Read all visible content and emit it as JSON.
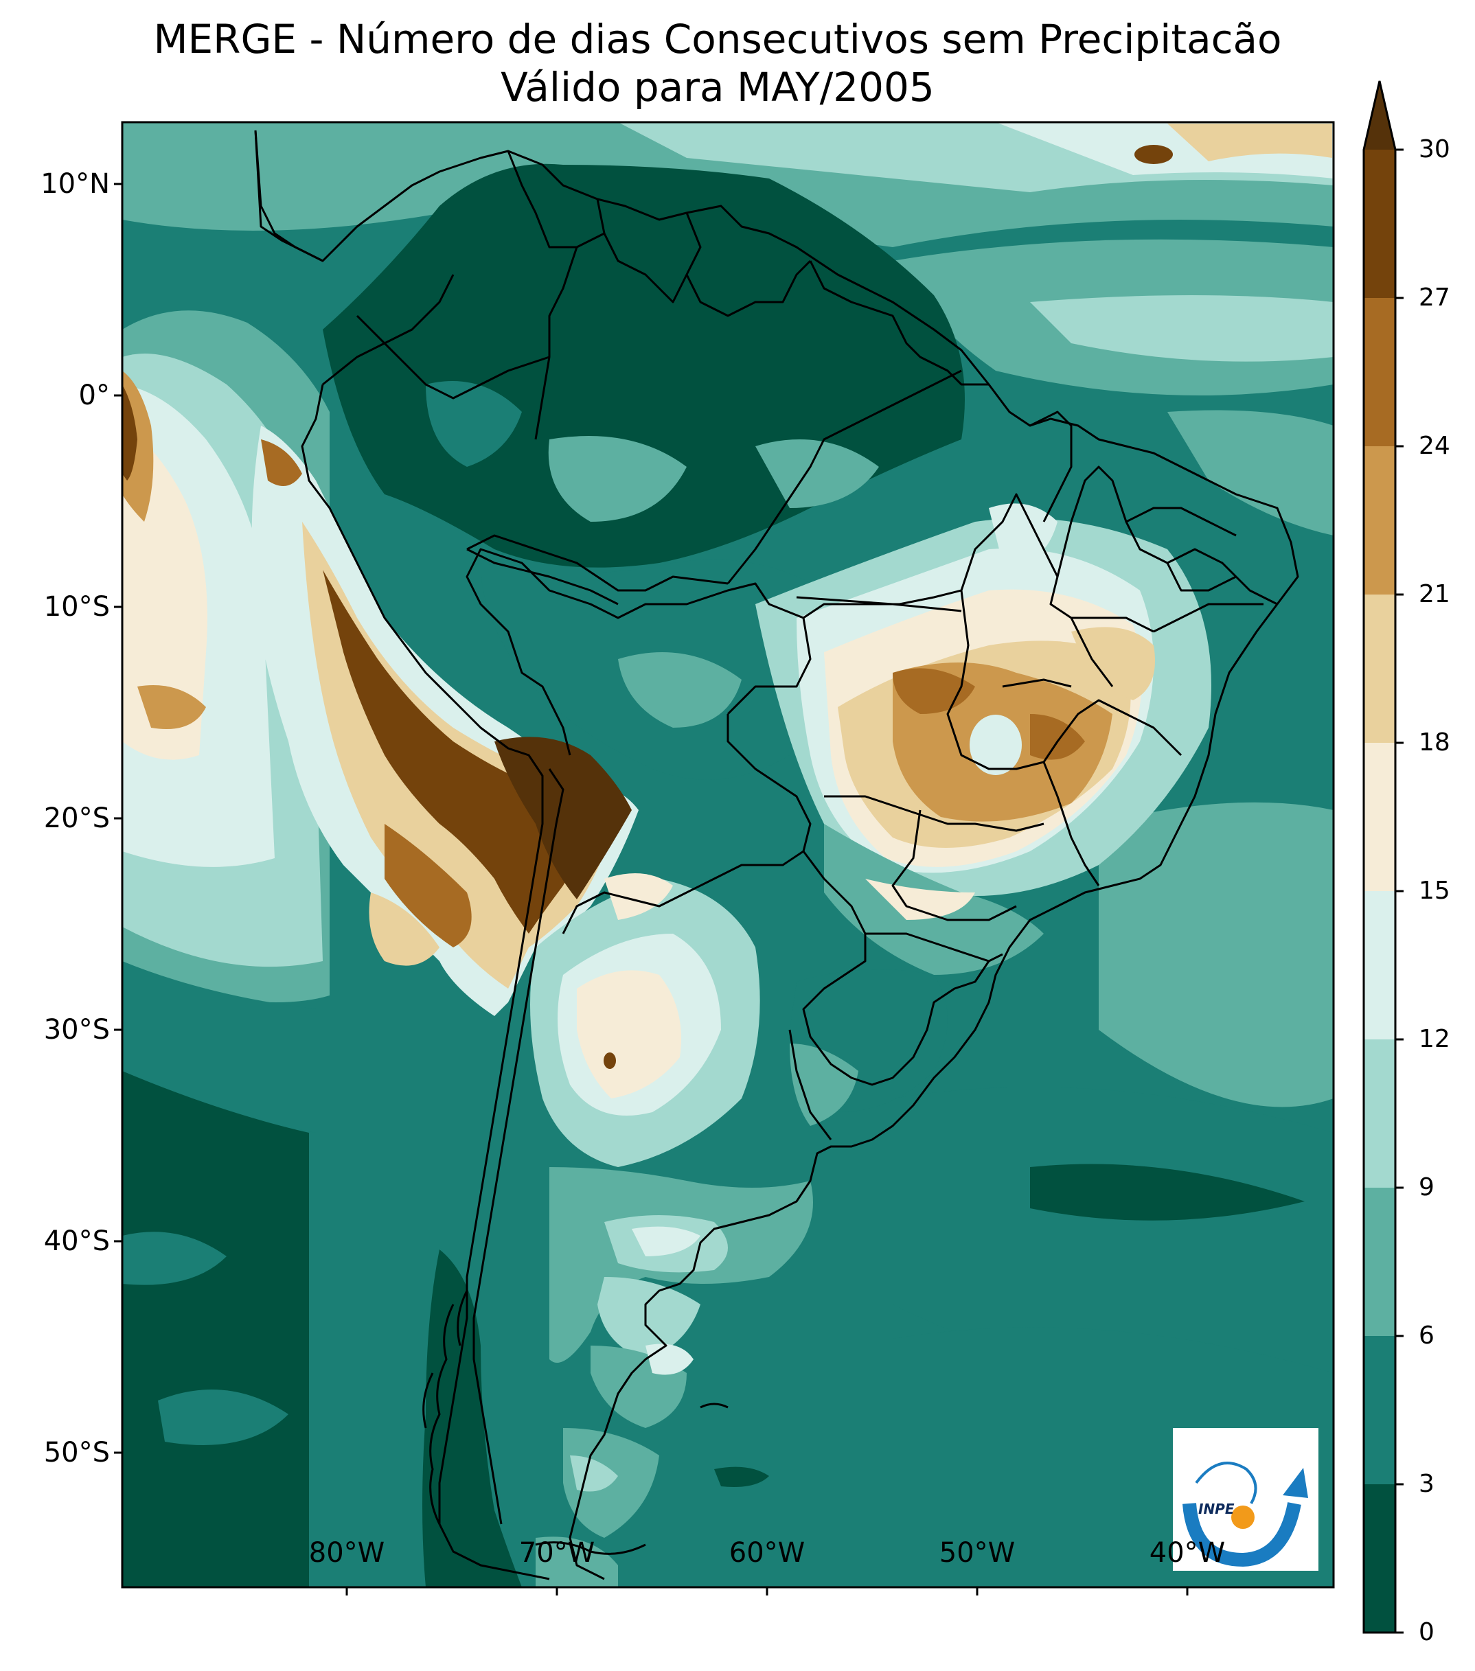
{
  "map": {
    "title_line1": "MERGE - Número de dias Consecutivos sem Precipitacão",
    "title_line2": "Válido para MAY/2005",
    "lat_labels": [
      "10°N",
      "0°",
      "10°S",
      "20°S",
      "30°S",
      "40°S",
      "50°S"
    ],
    "lon_labels": [
      "80°W",
      "70°W",
      "60°W",
      "50°W",
      "40°W"
    ],
    "logo_text": "INPE",
    "logo_colors": {
      "arc": "#1a7cc1",
      "dot": "#f29a1a"
    }
  },
  "colorbar": {
    "ticks": [
      "0",
      "3",
      "6",
      "9",
      "12",
      "15",
      "18",
      "21",
      "24",
      "27",
      "30"
    ],
    "extend": "max",
    "colors": [
      "#01513f",
      "#1b7f75",
      "#5db0a1",
      "#a3d9cf",
      "#daf0ec",
      "#f6ecd7",
      "#e9d19d",
      "#cc984d",
      "#a76b23",
      "#74430c",
      "#55320a"
    ]
  },
  "legend_colors": {
    "0-3": "#01513f",
    "3-6": "#1b7f75",
    "6-9": "#5db0a1",
    "9-12": "#a3d9cf",
    "12-15": "#daf0ec",
    "15-18": "#f6ecd7",
    "18-21": "#e9d19d",
    "21-24": "#cc984d",
    "24-27": "#a76b23",
    "27-30": "#74430c",
    ">30": "#55320a"
  }
}
